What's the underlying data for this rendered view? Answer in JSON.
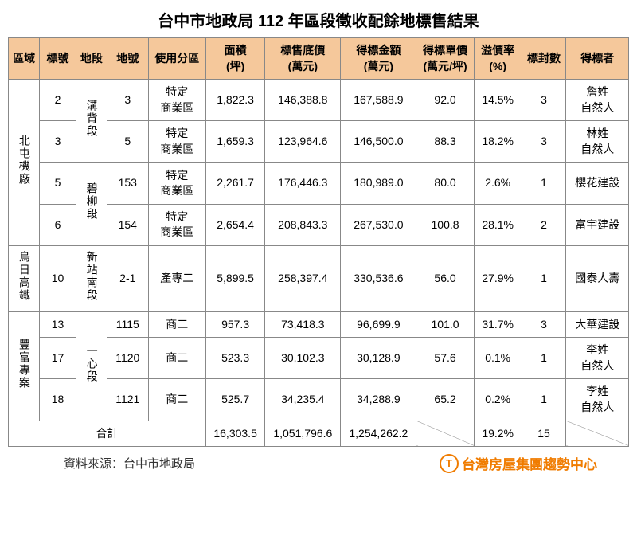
{
  "title": "台中市地政局 112 年區段徵收配餘地標售結果",
  "headers": {
    "zone": "區域",
    "no": "標號",
    "section": "地段",
    "lot": "地號",
    "use": "使用分區",
    "area": "面積\n(坪)",
    "base": "標售底價\n(萬元)",
    "bid": "得標金額\n(萬元)",
    "unit": "得標單價\n(萬元/坪)",
    "premium": "溢價率\n(%)",
    "count": "標封數",
    "winner": "得標者"
  },
  "zones": [
    {
      "name": "北屯機廠",
      "rows": 4
    },
    {
      "name": "烏日高鐵",
      "rows": 1
    },
    {
      "name": "豐富專案",
      "rows": 3
    }
  ],
  "sections": [
    {
      "name": "溝背段",
      "rows": 2
    },
    {
      "name": "碧柳段",
      "rows": 2
    },
    {
      "name": "新站南段",
      "rows": 1
    },
    {
      "name": "一心段",
      "rows": 3
    }
  ],
  "rows": [
    {
      "no": "2",
      "lot": "3",
      "use": "特定\n商業區",
      "area": "1,822.3",
      "base": "146,388.8",
      "bid": "167,588.9",
      "unit": "92.0",
      "prem": "14.5%",
      "cnt": "3",
      "winner": "詹姓\n自然人"
    },
    {
      "no": "3",
      "lot": "5",
      "use": "特定\n商業區",
      "area": "1,659.3",
      "base": "123,964.6",
      "bid": "146,500.0",
      "unit": "88.3",
      "prem": "18.2%",
      "cnt": "3",
      "winner": "林姓\n自然人"
    },
    {
      "no": "5",
      "lot": "153",
      "use": "特定\n商業區",
      "area": "2,261.7",
      "base": "176,446.3",
      "bid": "180,989.0",
      "unit": "80.0",
      "prem": "2.6%",
      "cnt": "1",
      "winner": "櫻花建設"
    },
    {
      "no": "6",
      "lot": "154",
      "use": "特定\n商業區",
      "area": "2,654.4",
      "base": "208,843.3",
      "bid": "267,530.0",
      "unit": "100.8",
      "prem": "28.1%",
      "cnt": "2",
      "winner": "富宇建設"
    },
    {
      "no": "10",
      "lot": "2-1",
      "use": "產專二",
      "area": "5,899.5",
      "base": "258,397.4",
      "bid": "330,536.6",
      "unit": "56.0",
      "prem": "27.9%",
      "cnt": "1",
      "winner": "國泰人壽"
    },
    {
      "no": "13",
      "lot": "1115",
      "use": "商二",
      "area": "957.3",
      "base": "73,418.3",
      "bid": "96,699.9",
      "unit": "101.0",
      "prem": "31.7%",
      "cnt": "3",
      "winner": "大華建設"
    },
    {
      "no": "17",
      "lot": "1120",
      "use": "商二",
      "area": "523.3",
      "base": "30,102.3",
      "bid": "30,128.9",
      "unit": "57.6",
      "prem": "0.1%",
      "cnt": "1",
      "winner": "李姓\n自然人"
    },
    {
      "no": "18",
      "lot": "1121",
      "use": "商二",
      "area": "525.7",
      "base": "34,235.4",
      "bid": "34,288.9",
      "unit": "65.2",
      "prem": "0.2%",
      "cnt": "1",
      "winner": "李姓\n自然人"
    }
  ],
  "total": {
    "label": "合計",
    "area": "16,303.5",
    "base": "1,051,796.6",
    "bid": "1,254,262.2",
    "prem": "19.2%",
    "cnt": "15"
  },
  "source": "資料來源：台中市地政局",
  "brand": "台灣房屋集團趨勢中心",
  "style": {
    "header_bg": "#f5c89b",
    "border_color": "#888888",
    "brand_color": "#f07c00",
    "title_fontsize": 20,
    "cell_fontsize": 14
  }
}
